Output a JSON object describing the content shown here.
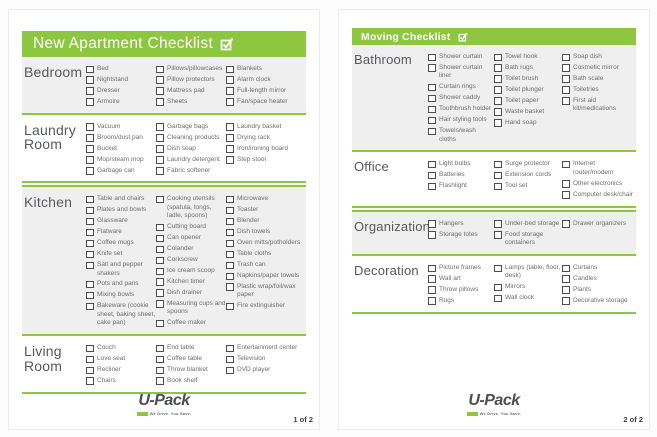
{
  "colors": {
    "green": "#8dc63f",
    "section_shade": "#efefef",
    "heading_text": "#58595b",
    "item_text": "#6d6e71"
  },
  "logo": {
    "brand": "U-Pack",
    "tagline": "We Drive. You Save."
  },
  "pages": [
    {
      "title": "New Apartment Checklist",
      "page_number": "1 of 2",
      "sections": [
        {
          "label": "Bedroom",
          "shaded": true,
          "columns": [
            [
              "Bed",
              "Nightstand",
              "Dresser",
              "Armoire"
            ],
            [
              "Pillows/pillowcases",
              "Pillow protectors",
              "Mattress pad",
              "Sheets"
            ],
            [
              "Blankets",
              "Alarm clock",
              "Full-length mirror",
              "Fan/space heater"
            ]
          ]
        },
        {
          "label": "Laundry Room",
          "shaded": false,
          "columns": [
            [
              "Vacuum",
              "Broom/dust pan",
              "Bucket",
              "Mop/steam mop",
              "Garbage can"
            ],
            [
              "Garbage bags",
              "Cleaning products",
              "Dish soap",
              "Laundry detergent",
              "Fabric softener"
            ],
            [
              "Laundry basket",
              "Drying rack",
              "Iron/ironing board",
              "Step stool"
            ]
          ]
        },
        {
          "label": "Kitchen",
          "shaded": true,
          "columns": [
            [
              "Table and chairs",
              "Plates and bowls",
              "Glassware",
              "Flatware",
              "Coffee mugs",
              "Knife set",
              "Salt and pepper shakers",
              "Pots and pans",
              "Mixing bowls",
              "Bakeware (cookie sheet, baking sheet, cake pan)"
            ],
            [
              "Cooking utensils (spatula, tongs, ladle, spoons)",
              "Cutting board",
              "Can opener",
              "Colander",
              "Corkscrew",
              "Ice cream scoop",
              "Kitchen timer",
              "Dish drainer",
              "Measuring cups and spoons",
              "Coffee maker"
            ],
            [
              "Microwave",
              "Toaster",
              "Blender",
              "Dish towels",
              "Oven mitts/potholders",
              "Table cloths",
              "Trash can",
              "Napkins/paper towels",
              "Plastic wrap/foil/wax paper",
              "Fire extinguisher"
            ]
          ]
        },
        {
          "label": "Living Room",
          "shaded": false,
          "columns": [
            [
              "Couch",
              "Love seat",
              "Recliner",
              "Chairs"
            ],
            [
              "End table",
              "Coffee table",
              "Throw blanket",
              "Book shelf"
            ],
            [
              "Entertainment center",
              "Television",
              "DVD player"
            ]
          ]
        }
      ]
    },
    {
      "title": "Moving Checklist",
      "page_number": "2 of 2",
      "sections": [
        {
          "label": "Bathroom",
          "shaded": true,
          "columns": [
            [
              "Shower curtain",
              "Shower curtain liner",
              "Curtain rings",
              "Shower caddy",
              "Toothbrush holder",
              "Hair styling tools",
              "Towels/wash cloths"
            ],
            [
              "Towel hook",
              "Bath rugs",
              "Toilet brush",
              "Toilet plunger",
              "Toilet paper",
              "Waste basket",
              "Hand soap"
            ],
            [
              "Soap dish",
              "Cosmetic mirror",
              "Bath scale",
              "Toiletries",
              "First aid kit/medications"
            ]
          ]
        },
        {
          "label": "Office",
          "shaded": false,
          "columns": [
            [
              "Light bulbs",
              "Batteries",
              "Flashlight"
            ],
            [
              "Surge protector",
              "Extension cords",
              "Tool set"
            ],
            [
              "Internet router/modem",
              "Other electronics",
              "Computer desk/chair"
            ]
          ]
        },
        {
          "label": "Organization",
          "shaded": true,
          "columns": [
            [
              "Hangers",
              "Storage totes"
            ],
            [
              "Under-bed storage",
              "Food storage containers"
            ],
            [
              "Drawer organizers"
            ]
          ]
        },
        {
          "label": "Decoration",
          "shaded": false,
          "columns": [
            [
              "Picture frames",
              "Wall art",
              "Throw pillows",
              "Rugs"
            ],
            [
              "Lamps (table, floor, desk)",
              "Mirrors",
              "Wall clock"
            ],
            [
              "Curtains",
              "Candles",
              "Plants",
              "Decorative storage"
            ]
          ]
        }
      ]
    }
  ]
}
